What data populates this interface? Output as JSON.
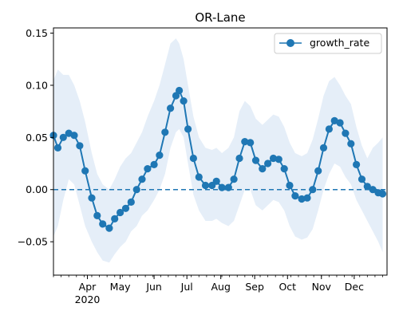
{
  "chart_data": {
    "type": "line",
    "title": "OR-Lane",
    "xlabel": "",
    "ylabel": "",
    "x_range": [
      "2020-03-01",
      "2020-12-31"
    ],
    "ylim": [
      -0.082,
      0.155
    ],
    "y_ticks": [
      -0.05,
      0.0,
      0.05,
      0.1,
      0.15
    ],
    "y_tick_labels": [
      "−0.05",
      "0.00",
      "0.05",
      "0.10",
      "0.15"
    ],
    "x_ticks": [
      {
        "date": "2020-04-01",
        "label": "Apr",
        "sublabel": "2020"
      },
      {
        "date": "2020-05-01",
        "label": "May"
      },
      {
        "date": "2020-06-01",
        "label": "Jun"
      },
      {
        "date": "2020-07-01",
        "label": "Jul"
      },
      {
        "date": "2020-08-01",
        "label": "Aug"
      },
      {
        "date": "2020-09-01",
        "label": "Sep"
      },
      {
        "date": "2020-10-01",
        "label": "Oct"
      },
      {
        "date": "2020-11-01",
        "label": "Nov"
      },
      {
        "date": "2020-12-01",
        "label": "Dec"
      }
    ],
    "grid": false,
    "legend_position": "top-right",
    "reference_line": {
      "y": 0.0,
      "style": "dashed"
    },
    "series": [
      {
        "name": "growth_rate",
        "color": "#1f77b4",
        "band_color": "#dce8f5",
        "points": [
          {
            "x": "2020-03-01",
            "y": 0.052,
            "lo": -0.045,
            "hi": 0.105
          },
          {
            "x": "2020-03-05",
            "y": 0.04,
            "lo": -0.035,
            "hi": 0.115
          },
          {
            "x": "2020-03-10",
            "y": 0.05,
            "lo": -0.01,
            "hi": 0.11
          },
          {
            "x": "2020-03-15",
            "y": 0.054,
            "lo": 0.01,
            "hi": 0.11
          },
          {
            "x": "2020-03-20",
            "y": 0.052,
            "lo": 0.005,
            "hi": 0.1
          },
          {
            "x": "2020-03-25",
            "y": 0.042,
            "lo": -0.015,
            "hi": 0.085
          },
          {
            "x": "2020-03-30",
            "y": 0.018,
            "lo": -0.035,
            "hi": 0.065
          },
          {
            "x": "2020-04-05",
            "y": -0.008,
            "lo": -0.05,
            "hi": 0.035
          },
          {
            "x": "2020-04-10",
            "y": -0.025,
            "lo": -0.06,
            "hi": 0.015
          },
          {
            "x": "2020-04-15",
            "y": -0.033,
            "lo": -0.068,
            "hi": 0.005
          },
          {
            "x": "2020-04-21",
            "y": -0.037,
            "lo": -0.07,
            "hi": 0.0
          },
          {
            "x": "2020-04-26",
            "y": -0.028,
            "lo": -0.062,
            "hi": 0.01
          },
          {
            "x": "2020-05-01",
            "y": -0.022,
            "lo": -0.055,
            "hi": 0.022
          },
          {
            "x": "2020-05-06",
            "y": -0.018,
            "lo": -0.05,
            "hi": 0.03
          },
          {
            "x": "2020-05-11",
            "y": -0.012,
            "lo": -0.04,
            "hi": 0.035
          },
          {
            "x": "2020-05-16",
            "y": 0.0,
            "lo": -0.035,
            "hi": 0.045
          },
          {
            "x": "2020-05-21",
            "y": 0.01,
            "lo": -0.025,
            "hi": 0.055
          },
          {
            "x": "2020-05-26",
            "y": 0.02,
            "lo": -0.02,
            "hi": 0.07
          },
          {
            "x": "2020-06-01",
            "y": 0.024,
            "lo": -0.01,
            "hi": 0.085
          },
          {
            "x": "2020-06-06",
            "y": 0.033,
            "lo": 0.0,
            "hi": 0.1
          },
          {
            "x": "2020-06-11",
            "y": 0.055,
            "lo": 0.015,
            "hi": 0.12
          },
          {
            "x": "2020-06-16",
            "y": 0.078,
            "lo": 0.04,
            "hi": 0.14
          },
          {
            "x": "2020-06-21",
            "y": 0.09,
            "lo": 0.055,
            "hi": 0.145
          },
          {
            "x": "2020-06-24",
            "y": 0.095,
            "lo": 0.058,
            "hi": 0.14
          },
          {
            "x": "2020-06-28",
            "y": 0.085,
            "lo": 0.05,
            "hi": 0.125
          },
          {
            "x": "2020-07-02",
            "y": 0.058,
            "lo": 0.025,
            "hi": 0.1
          },
          {
            "x": "2020-07-07",
            "y": 0.03,
            "lo": -0.005,
            "hi": 0.07
          },
          {
            "x": "2020-07-12",
            "y": 0.012,
            "lo": -0.02,
            "hi": 0.05
          },
          {
            "x": "2020-07-18",
            "y": 0.004,
            "lo": -0.03,
            "hi": 0.04
          },
          {
            "x": "2020-07-24",
            "y": 0.004,
            "lo": -0.03,
            "hi": 0.038
          },
          {
            "x": "2020-07-28",
            "y": 0.008,
            "lo": -0.028,
            "hi": 0.04
          },
          {
            "x": "2020-08-02",
            "y": 0.002,
            "lo": -0.032,
            "hi": 0.035
          },
          {
            "x": "2020-08-08",
            "y": 0.002,
            "lo": -0.035,
            "hi": 0.04
          },
          {
            "x": "2020-08-13",
            "y": 0.01,
            "lo": -0.03,
            "hi": 0.05
          },
          {
            "x": "2020-08-18",
            "y": 0.03,
            "lo": -0.015,
            "hi": 0.075
          },
          {
            "x": "2020-08-23",
            "y": 0.046,
            "lo": 0.0,
            "hi": 0.085
          },
          {
            "x": "2020-08-28",
            "y": 0.045,
            "lo": 0.0,
            "hi": 0.08
          },
          {
            "x": "2020-09-02",
            "y": 0.028,
            "lo": -0.015,
            "hi": 0.068
          },
          {
            "x": "2020-09-08",
            "y": 0.02,
            "lo": -0.02,
            "hi": 0.062
          },
          {
            "x": "2020-09-13",
            "y": 0.025,
            "lo": -0.015,
            "hi": 0.067
          },
          {
            "x": "2020-09-18",
            "y": 0.03,
            "lo": -0.01,
            "hi": 0.072
          },
          {
            "x": "2020-09-23",
            "y": 0.029,
            "lo": -0.012,
            "hi": 0.07
          },
          {
            "x": "2020-09-28",
            "y": 0.02,
            "lo": -0.02,
            "hi": 0.06
          },
          {
            "x": "2020-10-03",
            "y": 0.004,
            "lo": -0.035,
            "hi": 0.045
          },
          {
            "x": "2020-10-08",
            "y": -0.006,
            "lo": -0.045,
            "hi": 0.035
          },
          {
            "x": "2020-10-14",
            "y": -0.009,
            "lo": -0.048,
            "hi": 0.032
          },
          {
            "x": "2020-10-19",
            "y": -0.008,
            "lo": -0.046,
            "hi": 0.035
          },
          {
            "x": "2020-10-24",
            "y": 0.0,
            "lo": -0.038,
            "hi": 0.048
          },
          {
            "x": "2020-10-29",
            "y": 0.018,
            "lo": -0.02,
            "hi": 0.068
          },
          {
            "x": "2020-11-03",
            "y": 0.04,
            "lo": 0.0,
            "hi": 0.09
          },
          {
            "x": "2020-11-08",
            "y": 0.058,
            "lo": 0.015,
            "hi": 0.104
          },
          {
            "x": "2020-11-13",
            "y": 0.066,
            "lo": 0.025,
            "hi": 0.108
          },
          {
            "x": "2020-11-18",
            "y": 0.064,
            "lo": 0.022,
            "hi": 0.1
          },
          {
            "x": "2020-11-23",
            "y": 0.054,
            "lo": 0.012,
            "hi": 0.09
          },
          {
            "x": "2020-11-28",
            "y": 0.044,
            "lo": 0.005,
            "hi": 0.082
          },
          {
            "x": "2020-12-03",
            "y": 0.024,
            "lo": -0.01,
            "hi": 0.06
          },
          {
            "x": "2020-12-08",
            "y": 0.01,
            "lo": -0.02,
            "hi": 0.042
          },
          {
            "x": "2020-12-13",
            "y": 0.003,
            "lo": -0.03,
            "hi": 0.03
          },
          {
            "x": "2020-12-18",
            "y": 0.0,
            "lo": -0.04,
            "hi": 0.04
          },
          {
            "x": "2020-12-23",
            "y": -0.003,
            "lo": -0.05,
            "hi": 0.045
          },
          {
            "x": "2020-12-27",
            "y": -0.004,
            "lo": -0.06,
            "hi": 0.05
          }
        ]
      }
    ]
  }
}
